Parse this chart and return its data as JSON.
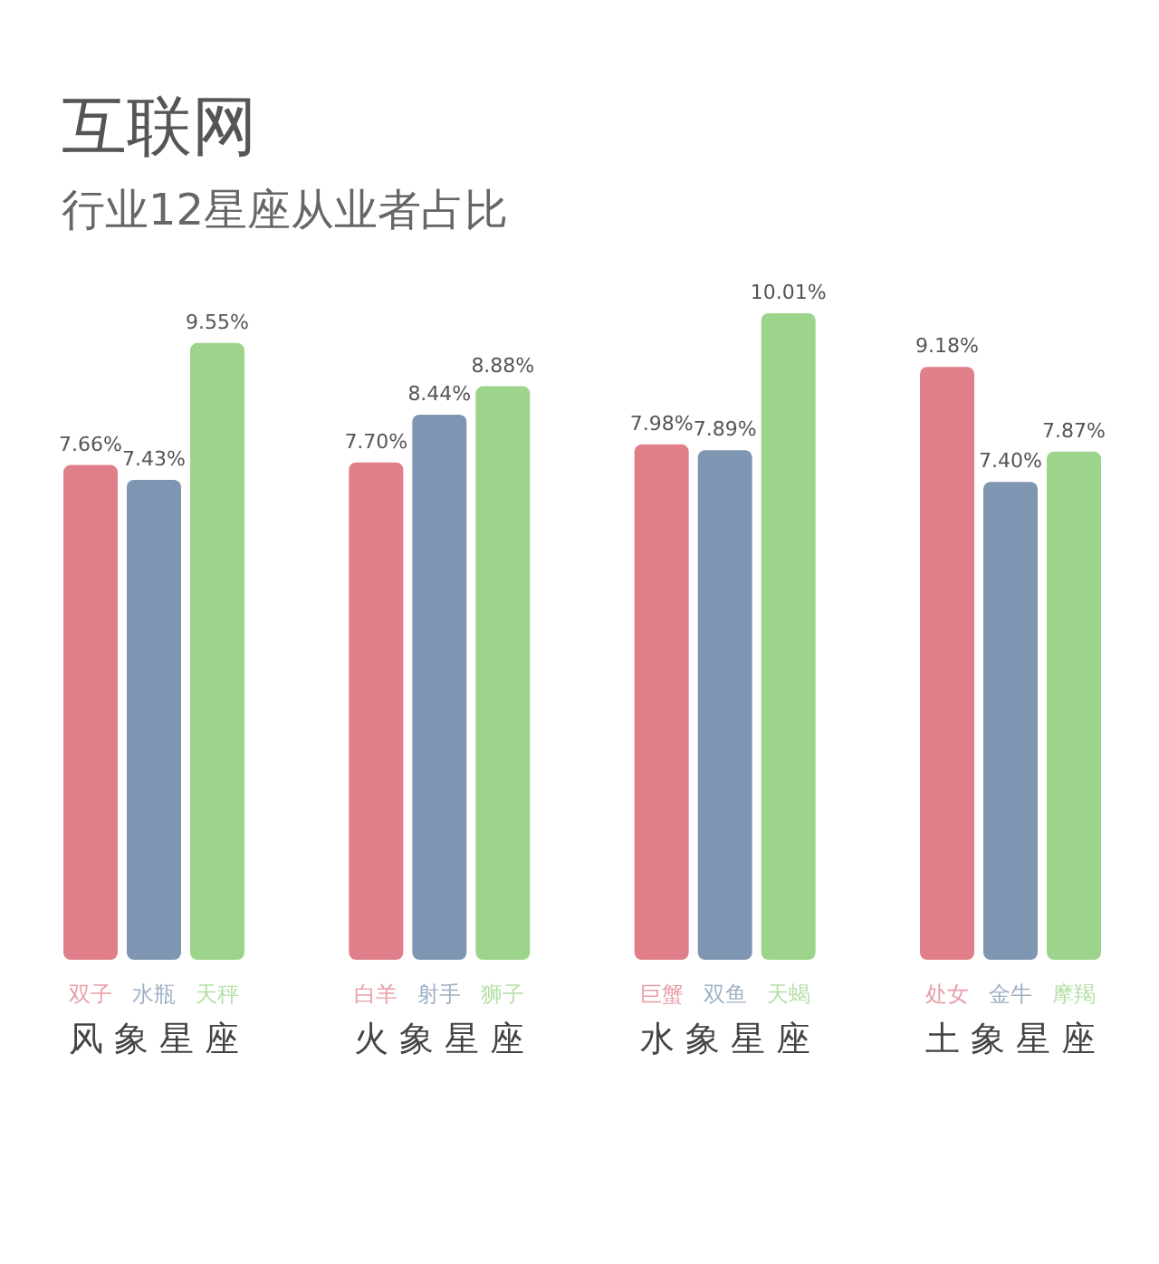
{
  "chart_data": {
    "type": "bar",
    "title": "互联网",
    "subtitle": "行业12星座从业者占比",
    "categories": [
      "双子",
      "水瓶",
      "天秤",
      "白羊",
      "射手",
      "狮子",
      "巨蟹",
      "双鱼",
      "天蝎",
      "处女",
      "金牛",
      "摩羯"
    ],
    "values": [
      7.66,
      7.43,
      9.55,
      7.7,
      8.44,
      8.88,
      7.98,
      7.89,
      10.01,
      9.18,
      7.4,
      7.87
    ],
    "value_labels": [
      "7.66%",
      "7.43%",
      "9.55%",
      "7.70%",
      "8.44%",
      "8.88%",
      "7.98%",
      "7.89%",
      "10.01%",
      "9.18%",
      "7.40%",
      "7.87%"
    ],
    "colors": [
      "#e07e89",
      "#7e96b2",
      "#9dd48b",
      "#e07e89",
      "#7e96b2",
      "#9dd48b",
      "#e07e89",
      "#7e96b2",
      "#9dd48b",
      "#e07e89",
      "#7e96b2",
      "#9dd48b"
    ],
    "annotations": [
      "风 象 星 座",
      "火 象 星 座",
      "水 象 星 座",
      "土 象 星 座"
    ]
  }
}
